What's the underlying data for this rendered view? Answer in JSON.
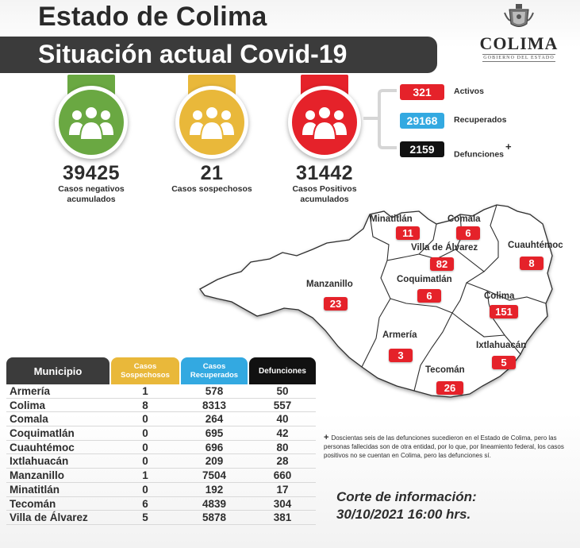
{
  "header": {
    "title_line1": "Estado de Colima",
    "title_line2": "Situación actual Covid-19"
  },
  "logo": {
    "name": "COLIMA",
    "subtitle": "GOBIERNO DEL ESTADO",
    "icon": "state-crest-icon"
  },
  "stats": [
    {
      "value": "39425",
      "label_line1": "Casos negativos",
      "label_line2": "acumulados",
      "color": "#6aa842",
      "icon": "people-group-icon"
    },
    {
      "value": "21",
      "label_line1": "Casos sospechosos",
      "label_line2": "",
      "color": "#e9b83a",
      "icon": "people-group-icon"
    },
    {
      "value": "31442",
      "label_line1": "Casos Positivos",
      "label_line2": "acumulados",
      "color": "#e5222a",
      "icon": "people-group-icon"
    }
  ],
  "breakdown": [
    {
      "value": "321",
      "label": "Activos",
      "color": "#e5222a"
    },
    {
      "value": "29168",
      "label": "Recuperados",
      "color": "#33a9e1"
    },
    {
      "value": "2159",
      "label": "Defunciones",
      "color": "#111111",
      "marker": "+"
    }
  ],
  "map": {
    "municipalities": [
      {
        "name": "Minatitlán",
        "value": "11"
      },
      {
        "name": "Comala",
        "value": "6"
      },
      {
        "name": "Villa de Álvarez",
        "value": "82"
      },
      {
        "name": "Cuauhtémoc",
        "value": "8"
      },
      {
        "name": "Manzanillo",
        "value": "23"
      },
      {
        "name": "Coquimatlán",
        "value": "6"
      },
      {
        "name": "Colima",
        "value": "151"
      },
      {
        "name": "Armería",
        "value": "3"
      },
      {
        "name": "Ixtlahuacán",
        "value": "5"
      },
      {
        "name": "Tecomán",
        "value": "26"
      }
    ]
  },
  "table": {
    "headers": [
      {
        "line1": "Municipio",
        "line2": "",
        "color": "#3b3b3b"
      },
      {
        "line1": "Casos",
        "line2": "Sospechosos",
        "color": "#e9b83a"
      },
      {
        "line1": "Casos",
        "line2": "Recuperados",
        "color": "#33a9e1"
      },
      {
        "line1": "Defunciones",
        "line2": "",
        "color": "#111111"
      }
    ],
    "rows": [
      {
        "municipio": "Armería",
        "sospechosos": "1",
        "recuperados": "578",
        "defunciones": "50"
      },
      {
        "municipio": "Colima",
        "sospechosos": "8",
        "recuperados": "8313",
        "defunciones": "557"
      },
      {
        "municipio": "Comala",
        "sospechosos": "0",
        "recuperados": "264",
        "defunciones": "40"
      },
      {
        "municipio": "Coquimatlán",
        "sospechosos": "0",
        "recuperados": "695",
        "defunciones": "42"
      },
      {
        "municipio": "Cuauhtémoc",
        "sospechosos": "0",
        "recuperados": "696",
        "defunciones": "80"
      },
      {
        "municipio": "Ixtlahuacán",
        "sospechosos": "0",
        "recuperados": "209",
        "defunciones": "28"
      },
      {
        "municipio": "Manzanillo",
        "sospechosos": "1",
        "recuperados": "7504",
        "defunciones": "660"
      },
      {
        "municipio": "Minatitlán",
        "sospechosos": "0",
        "recuperados": "192",
        "defunciones": "17"
      },
      {
        "municipio": "Tecomán",
        "sospechosos": "6",
        "recuperados": "4839",
        "defunciones": "304"
      },
      {
        "municipio": "Villa de Álvarez",
        "sospechosos": "5",
        "recuperados": "5878",
        "defunciones": "381"
      }
    ]
  },
  "footnote": {
    "marker": "+",
    "text": "Doscientas seis de las defunciones sucedieron en el Estado de Colima, pero las personas fallecidas son de otra entidad, por lo que, por lineamiento federal, los casos positivos no se cuentan en Colima, pero las defunciones sí."
  },
  "corte": {
    "label": "Corte de información:",
    "datetime": "30/10/2021 16:00 hrs."
  }
}
